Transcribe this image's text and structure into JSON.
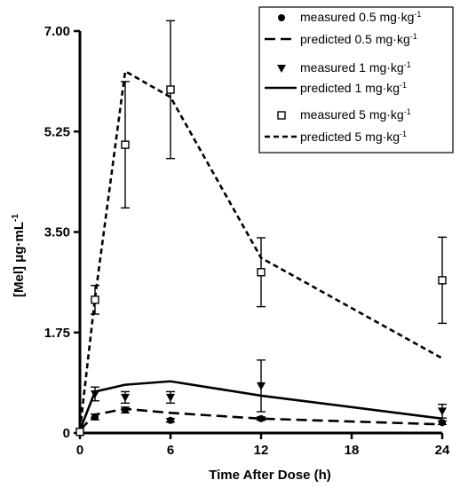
{
  "chart_data": {
    "type": "line",
    "xlabel": "Time After Dose (h)",
    "ylabel_main": "[Mel] μg·mL",
    "ylabel_sup": "-1",
    "xlim": [
      0,
      24
    ],
    "ylim": [
      0,
      7.0
    ],
    "x_ticks": [
      0,
      6,
      12,
      18,
      24
    ],
    "y_ticks": [
      0,
      1.75,
      3.5,
      5.25,
      7.0
    ],
    "y_tick_labels": [
      "0",
      "1.75",
      "3.50",
      "5.25",
      "7.00"
    ],
    "grid": false,
    "legend_position": "top-right",
    "unit_text": "mg·kg",
    "unit_sup": "-1",
    "series": [
      {
        "name": "measured 0.5",
        "kind": "measured",
        "marker": "circle",
        "points": [
          {
            "x": 0,
            "y": 0.02,
            "err": 0
          },
          {
            "x": 1,
            "y": 0.28,
            "err": 0.05
          },
          {
            "x": 3,
            "y": 0.4,
            "err": 0.05
          },
          {
            "x": 6,
            "y": 0.22,
            "err": 0.03
          },
          {
            "x": 12,
            "y": 0.25,
            "err": 0.03
          },
          {
            "x": 24,
            "y": 0.18,
            "err": 0.03
          }
        ]
      },
      {
        "name": "predicted 0.5",
        "kind": "predicted",
        "dash": "12,6",
        "points": [
          [
            0,
            0.05
          ],
          [
            1,
            0.32
          ],
          [
            3,
            0.42
          ],
          [
            6,
            0.35
          ],
          [
            12,
            0.25
          ],
          [
            24,
            0.15
          ]
        ]
      },
      {
        "name": "measured 1",
        "kind": "measured",
        "marker": "triangle-down",
        "points": [
          {
            "x": 0,
            "y": 0.02,
            "err": 0
          },
          {
            "x": 1,
            "y": 0.68,
            "err": 0.12
          },
          {
            "x": 3,
            "y": 0.62,
            "err": 0.1
          },
          {
            "x": 6,
            "y": 0.62,
            "err": 0.1
          },
          {
            "x": 12,
            "y": 0.82,
            "err": 0.45
          },
          {
            "x": 24,
            "y": 0.38,
            "err": 0.12
          }
        ]
      },
      {
        "name": "predicted 1",
        "kind": "predicted",
        "dash": "",
        "points": [
          [
            0,
            0.05
          ],
          [
            1,
            0.72
          ],
          [
            3,
            0.84
          ],
          [
            6,
            0.9
          ],
          [
            12,
            0.65
          ],
          [
            24,
            0.25
          ]
        ]
      },
      {
        "name": "measured 5",
        "kind": "measured",
        "marker": "square-open",
        "points": [
          {
            "x": 0,
            "y": 0.02,
            "err": 0
          },
          {
            "x": 1,
            "y": 2.32,
            "err": 0.25
          },
          {
            "x": 3,
            "y": 5.02,
            "err": 1.1
          },
          {
            "x": 6,
            "y": 5.98,
            "err": 1.2
          },
          {
            "x": 12,
            "y": 2.8,
            "err": 0.6
          },
          {
            "x": 24,
            "y": 2.66,
            "err": 0.75
          }
        ]
      },
      {
        "name": "predicted 5",
        "kind": "predicted",
        "dash": "6,4",
        "points": [
          [
            0,
            0.05
          ],
          [
            1,
            2.35
          ],
          [
            3,
            6.3
          ],
          [
            6,
            5.85
          ],
          [
            12,
            3.05
          ],
          [
            24,
            1.3
          ]
        ]
      }
    ],
    "legend": [
      {
        "symbol": "circle",
        "label": "measured 0.5"
      },
      {
        "symbol": "dash-long",
        "label": "predicted 0.5"
      },
      {
        "symbol": "triangle-down",
        "label": "measured 1"
      },
      {
        "symbol": "solid",
        "label": "predicted 1"
      },
      {
        "symbol": "square-open",
        "label": "measured 5"
      },
      {
        "symbol": "dash-short",
        "label": "predicted 5"
      }
    ]
  }
}
